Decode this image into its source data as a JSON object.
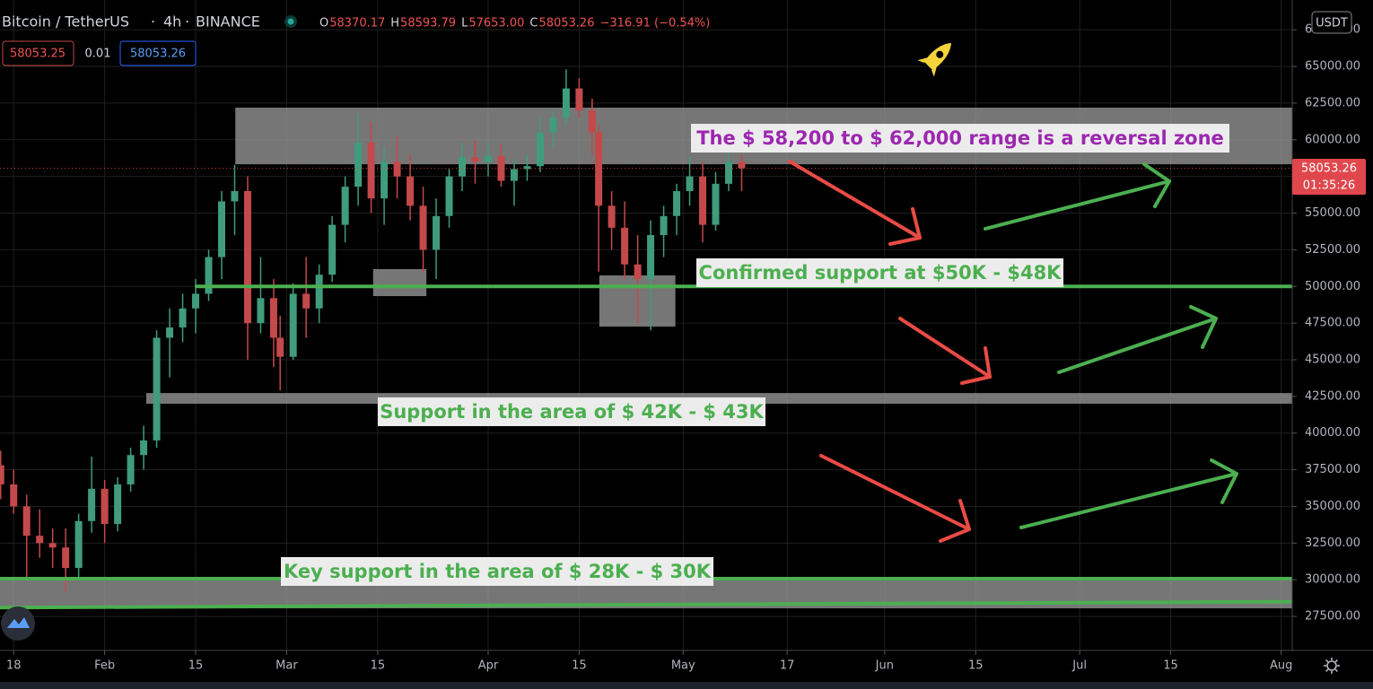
{
  "header": {
    "symbol": "Bitcoin / TetherUS",
    "interval": "4h",
    "exchange": "BINANCE",
    "ohlc": [
      {
        "label": "O",
        "value": "58370.17"
      },
      {
        "label": "H",
        "value": "58593.79"
      },
      {
        "label": "L",
        "value": "57653.00"
      },
      {
        "label": "C",
        "value": "58053.26"
      }
    ],
    "change": "−316.91 (−0.54%)",
    "sell": "58053.25",
    "spread": "0.01",
    "buy": "58053.26",
    "currency": "USDT",
    "last_price": 58053.26,
    "countdown": "01:35:26"
  },
  "chart_data": {
    "type": "candlestick",
    "x": [
      16,
      18,
      20,
      22,
      24,
      26,
      28,
      30,
      32,
      34,
      36,
      38,
      40,
      42,
      44,
      46,
      48,
      50,
      52,
      54,
      56,
      58,
      59,
      61,
      63,
      65,
      67,
      69,
      71,
      73,
      75,
      77,
      79,
      81,
      83,
      85,
      87,
      89,
      91,
      93,
      95,
      97,
      99,
      101,
      103,
      105,
      107,
      108,
      110,
      112,
      114,
      116,
      118,
      120,
      122,
      124,
      126,
      128,
      130
    ],
    "open": [
      37800,
      36500,
      35000,
      33000,
      32500,
      32200,
      30800,
      34000,
      36200,
      33800,
      36500,
      38500,
      39500,
      46500,
      47200,
      48500,
      49500,
      52000,
      55800,
      56500,
      47500,
      49200,
      46500,
      45200,
      49500,
      48500,
      50800,
      54200,
      56800,
      59800,
      56000,
      58500,
      57500,
      55500,
      52500,
      54800,
      57500,
      58800,
      58500,
      58900,
      57200,
      58000,
      58200,
      60500,
      61500,
      63500,
      62000,
      60500,
      55500,
      54000,
      51500,
      50500,
      53500,
      54800,
      56500,
      57500,
      54200,
      57000,
      58500
    ],
    "high": [
      38800,
      37500,
      35800,
      34800,
      33500,
      33500,
      34500,
      38400,
      36800,
      37000,
      39000,
      40500,
      47000,
      48500,
      49500,
      50500,
      52500,
      56500,
      58300,
      57500,
      52000,
      50500,
      48000,
      50200,
      52000,
      51500,
      54800,
      57500,
      61800,
      61200,
      59500,
      60200,
      59000,
      56800,
      56000,
      58000,
      59800,
      60000,
      59800,
      59700,
      58700,
      59000,
      61500,
      62000,
      64800,
      64200,
      62800,
      61000,
      56500,
      55800,
      53500,
      54500,
      55500,
      57000,
      58800,
      58500,
      57800,
      59500,
      59000
    ],
    "low": [
      35500,
      34500,
      30200,
      31500,
      30800,
      29200,
      30000,
      33200,
      32500,
      33300,
      36000,
      37500,
      39000,
      43800,
      46200,
      46800,
      49000,
      50500,
      53500,
      45000,
      46800,
      44500,
      42900,
      45000,
      46500,
      47500,
      50300,
      53000,
      55500,
      55000,
      54200,
      56000,
      54500,
      51000,
      50500,
      54000,
      56500,
      57000,
      57500,
      56800,
      55500,
      57200,
      57800,
      59500,
      61000,
      61500,
      59000,
      51000,
      52500,
      50500,
      47500,
      47000,
      52000,
      53500,
      55500,
      53000,
      53800,
      56500,
      56500
    ],
    "close": [
      36500,
      35000,
      33000,
      32500,
      32200,
      30800,
      34000,
      36200,
      33800,
      36500,
      38500,
      39500,
      46500,
      47200,
      48500,
      49500,
      52000,
      55800,
      56500,
      47500,
      49200,
      46500,
      45200,
      49500,
      48500,
      50800,
      54200,
      56800,
      59800,
      56000,
      58500,
      57500,
      55500,
      52500,
      54800,
      57500,
      58800,
      58500,
      58900,
      57200,
      58000,
      58200,
      60500,
      61500,
      63500,
      62000,
      60500,
      55500,
      54000,
      51500,
      50500,
      53500,
      54800,
      56500,
      57500,
      54200,
      57000,
      58500,
      58053
    ],
    "up_color": "#3f9c7c",
    "down_color": "#c4494a",
    "xlim": [
      15.9,
      214.7
    ],
    "ylim": [
      25180,
      69530
    ],
    "xticks": [
      {
        "value": 18,
        "label": "18"
      },
      {
        "value": 32,
        "label": "Feb"
      },
      {
        "value": 46,
        "label": "15"
      },
      {
        "value": 60,
        "label": "Mar"
      },
      {
        "value": 74,
        "label": "15"
      },
      {
        "value": 91,
        "label": "Apr"
      },
      {
        "value": 105,
        "label": "15"
      },
      {
        "value": 121,
        "label": "May"
      },
      {
        "value": 137,
        "label": "17"
      },
      {
        "value": 152,
        "label": "Jun"
      },
      {
        "value": 166,
        "label": "15"
      },
      {
        "value": 182,
        "label": "Jul"
      },
      {
        "value": 196,
        "label": "15"
      },
      {
        "value": 213,
        "label": "Aug"
      }
    ],
    "yticks": [
      {
        "value": 27500,
        "label": "27500.00"
      },
      {
        "value": 30000,
        "label": "30000.00"
      },
      {
        "value": 32500,
        "label": "32500.00"
      },
      {
        "value": 35000,
        "label": "35000.00"
      },
      {
        "value": 37500,
        "label": "37500.00"
      },
      {
        "value": 40000,
        "label": "40000.00"
      },
      {
        "value": 42500,
        "label": "42500.00"
      },
      {
        "value": 45000,
        "label": "45000.00"
      },
      {
        "value": 47500,
        "label": "47500.00"
      },
      {
        "value": 50000,
        "label": "50000.00"
      },
      {
        "value": 52500,
        "label": "52500.00"
      },
      {
        "value": 55000,
        "label": "55000.00"
      },
      {
        "value": 57500,
        "label": "57500.00"
      },
      {
        "value": 60000,
        "label": "60000.00"
      },
      {
        "value": 62500,
        "label": "62500.00"
      },
      {
        "value": 65000,
        "label": "65000.00"
      },
      {
        "value": 67500,
        "label": "67500.00"
      }
    ],
    "grid": true,
    "zones": [
      {
        "x": [
          52.1,
          214.7
        ],
        "y": [
          58330,
          62190
        ]
      },
      {
        "x": [
          73.3,
          81.5
        ],
        "y": [
          49340,
          51180
        ]
      },
      {
        "x": [
          108.1,
          119.8
        ],
        "y": [
          47260,
          50750
        ]
      },
      {
        "x": [
          38.4,
          214.7
        ],
        "y": [
          42000,
          42730
        ]
      },
      {
        "x": [
          15.9,
          214.7
        ],
        "y": [
          28050,
          30070
        ]
      }
    ],
    "zone_color": "#9e9e9e",
    "lines": [
      {
        "x": [
          45.9,
          214.7
        ],
        "y": [
          50000,
          50000
        ]
      },
      {
        "x": [
          15.9,
          214.7
        ],
        "y": [
          30070,
          30070
        ]
      },
      {
        "x": [
          15.9,
          214.7
        ],
        "y": [
          28100,
          28500
        ]
      }
    ],
    "line_color": "#4caf50",
    "annotations": [
      {
        "text": "The $ 58,200 to $ 62,000 range is a reversal zone",
        "color": "#9c27b0"
      },
      {
        "text": "Confirmed support at $50K - $48K",
        "color": "#4caf50"
      },
      {
        "text": "Support in the area of $ 42K - $ 43K",
        "color": "#4caf50"
      },
      {
        "text": "Key support in the area of $ 28K - $ 30K",
        "color": "#4caf50"
      }
    ]
  }
}
